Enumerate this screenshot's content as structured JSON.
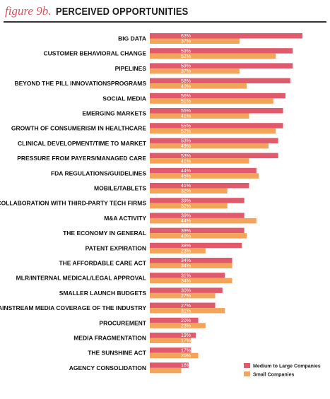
{
  "header": {
    "figure_label": "figure 9b.",
    "title": "PERCEIVED OPPORTUNITIES"
  },
  "colors": {
    "medium_large": "#e05a6b",
    "small": "#f2a45a",
    "accent": "#d9505f"
  },
  "chart_data": {
    "type": "bar",
    "orientation": "horizontal",
    "title": "PERCEIVED OPPORTUNITIES",
    "categories": [
      "BIG DATA",
      "CUSTOMER BEHAVIORAL CHANGE",
      "PIPELINES",
      "BEYOND THE PILL INNOVATIONSPROGRAMS",
      "SOCIAL MEDIA",
      "EMERGING MARKETS",
      "GROWTH OF CONSUMERISM IN HEALTHCARE",
      "CLINICAL DEVELOPMENT/TIME TO MARKET",
      "PRESSURE FROM PAYERS/MANAGED CARE",
      "FDA REGULATIONS/GUIDELINES",
      "MOBILE/TABLETS",
      "COLLABORATION WITH THIRD-PARTY TECH FIRMS",
      "M&A ACTIVITY",
      "THE ECONOMY IN GENERAL",
      "PATENT EXPIRATION",
      "THE AFFORDABLE CARE ACT",
      "MLR/INTERNAL MEDICAL/LEGAL APPROVAL",
      "SMALLER LAUNCH BUDGETS",
      "MAINSTREAM MEDIA COVERAGE OF THE INDUSTRY",
      "PROCUREMENT",
      "MEDIA FRAGMENTATION",
      "THE SUNSHINE ACT",
      "AGENCY CONSOLIDATION"
    ],
    "series": [
      {
        "name": "Medium to Large Companies",
        "values": [
          63,
          59,
          59,
          58,
          56,
          55,
          55,
          53,
          53,
          44,
          41,
          39,
          39,
          39,
          38,
          34,
          31,
          30,
          27,
          20,
          19,
          17,
          16
        ]
      },
      {
        "name": "Small Companies",
        "values": [
          37,
          52,
          37,
          40,
          51,
          41,
          52,
          49,
          41,
          45,
          32,
          32,
          44,
          40,
          23,
          34,
          34,
          27,
          31,
          23,
          17,
          20,
          13
        ]
      }
    ],
    "value_suffix": "%",
    "legend_position": "bottom-right",
    "grid": false,
    "xlim": [
      0,
      65
    ]
  }
}
